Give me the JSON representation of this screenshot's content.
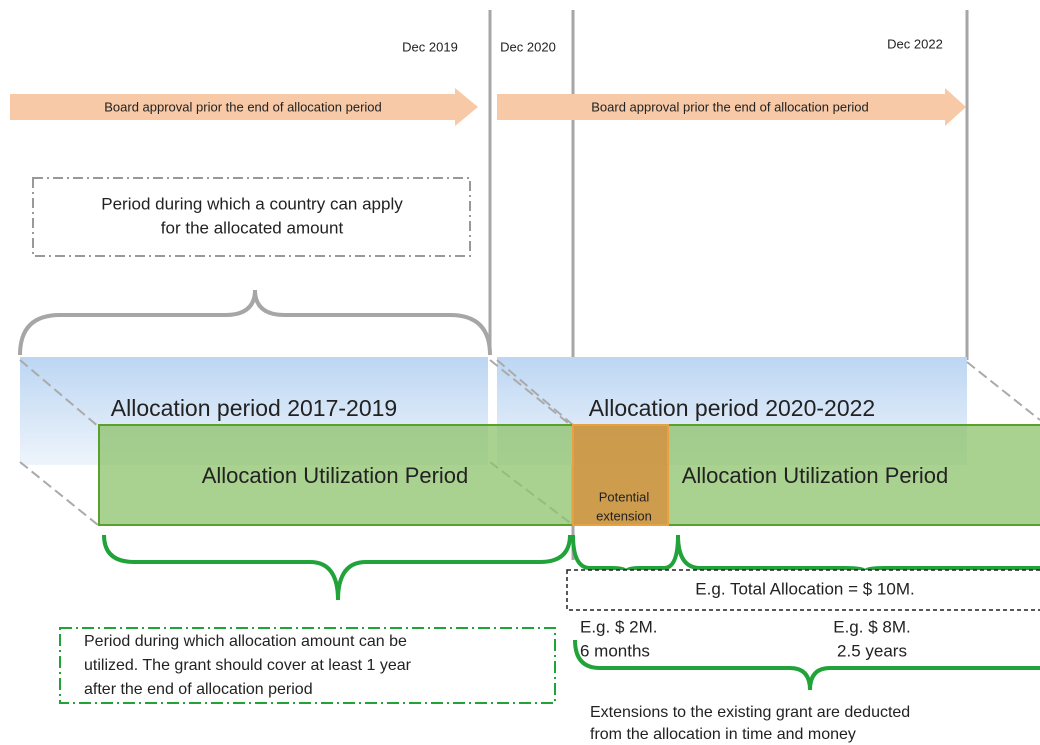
{
  "dates": [
    "Dec 2019",
    "Dec 2020",
    "Dec 2022"
  ],
  "approval_arrows": [
    "Board approval prior the end of allocation period",
    "Board approval prior the end of allocation period"
  ],
  "apply_note": [
    "Period during which a country can apply",
    "for the allocated amount"
  ],
  "allocation_periods": [
    "Allocation period 2017-2019",
    "Allocation period 2020-2022"
  ],
  "utilization_periods": [
    "Allocation Utilization Period",
    "Allocation Utilization Period"
  ],
  "extension": [
    "Potential",
    "extension"
  ],
  "total_allocation": "E.g. Total Allocation = $ 10M.",
  "splits": [
    [
      "E.g. $ 2M.",
      "6 months"
    ],
    [
      "E.g. $ 8M.",
      "2.5 years"
    ]
  ],
  "utilization_note": [
    "Period during which allocation amount can be",
    "utilized. The grant should cover at least 1 year",
    "after the end of allocation period"
  ],
  "extension_note": [
    "Extensions to the existing grant are deducted",
    "from the allocation in time and money"
  ]
}
